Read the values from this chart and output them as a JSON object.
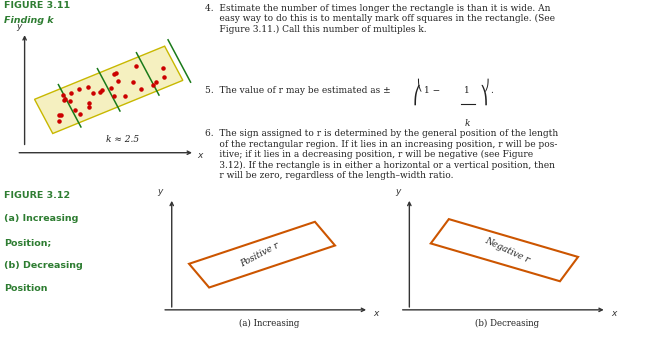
{
  "fig_title_311": "FIGURE 3.11",
  "fig_subtitle_311": "Finding k",
  "fig_title_312": "FIGURE 3.12",
  "fig_subtitle_312a": "(a) Increasing",
  "fig_subtitle_312b": "Position;",
  "fig_subtitle_312c": "(b) Decreasing",
  "fig_subtitle_312d": "Position",
  "k_label": "k ≈ 2.5",
  "label_a": "(a) Increasing",
  "label_b": "(b) Decreasing",
  "positive_r_label": "Positive r",
  "negative_r_label": "Negative r",
  "title_color": "#2e7d32",
  "rect_color_311_fill": "#f5f0c0",
  "rect_color_311_edge": "#c8b800",
  "dot_color": "#cc0000",
  "green_line_color": "#1a7a1a",
  "rect312_fill": "white",
  "rect312_edge": "#cc5500",
  "axis_color": "#333333",
  "text_color": "#222222",
  "background_color": "#ffffff"
}
